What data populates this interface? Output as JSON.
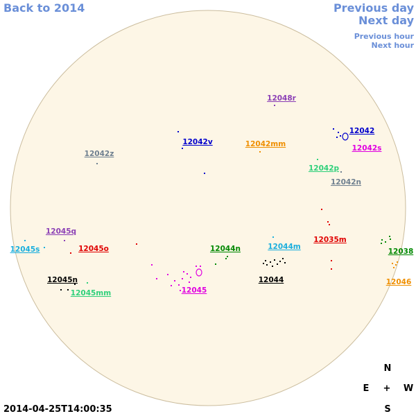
{
  "navigation": {
    "back_year": "Back to 2014",
    "previous_day": "Previous day",
    "next_day": "Next day",
    "previous_hour": "Previous hour",
    "next_hour": "Next hour"
  },
  "regions": [
    {
      "label": "12048r",
      "color": "#8b3fb5"
    },
    {
      "label": "12042",
      "color": "#0000cc"
    },
    {
      "label": "12042s",
      "color": "#e000e0"
    },
    {
      "label": "12042v",
      "color": "#0000cc"
    },
    {
      "label": "12042mm",
      "color": "#ef8f00"
    },
    {
      "label": "12042z",
      "color": "#6e7f8f"
    },
    {
      "label": "12042p",
      "color": "#2fd07a"
    },
    {
      "label": "12042n",
      "color": "#6e7f8f"
    },
    {
      "label": "12035m",
      "color": "#e00000"
    },
    {
      "label": "12045q",
      "color": "#8b3fb5"
    },
    {
      "label": "12045s",
      "color": "#1aaedd"
    },
    {
      "label": "12045o",
      "color": "#e00000"
    },
    {
      "label": "12044n",
      "color": "#008800"
    },
    {
      "label": "12044m",
      "color": "#1aaedd"
    },
    {
      "label": "12038",
      "color": "#008800"
    },
    {
      "label": "12044",
      "color": "#000000"
    },
    {
      "label": "12045n",
      "color": "#000000"
    },
    {
      "label": "12045mm",
      "color": "#2fd07a"
    },
    {
      "label": "12045",
      "color": "#e000e0"
    },
    {
      "label": "12046",
      "color": "#ef8f00"
    }
  ],
  "compass": {
    "north": "N",
    "east": "E",
    "center": "+",
    "west": "W",
    "south": "S"
  },
  "timestamp": "2014-04-25T14:00:35"
}
